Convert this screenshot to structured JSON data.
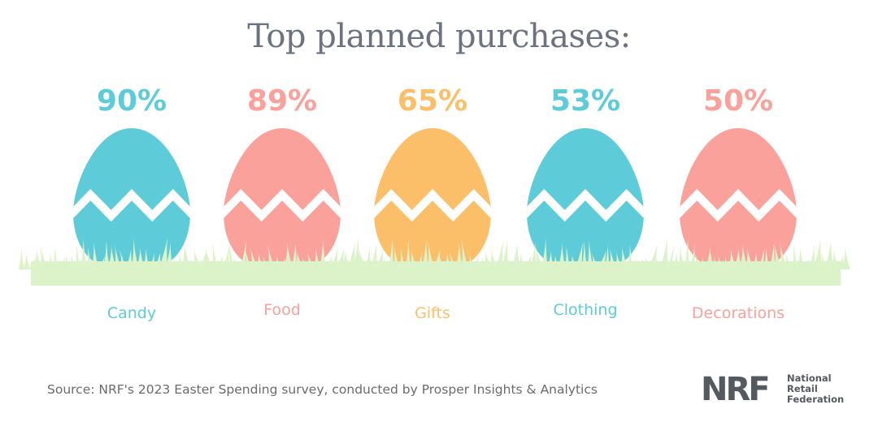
{
  "title": "Top planned purchases:",
  "chart_data": {
    "type": "bar",
    "categories": [
      "Candy",
      "Food",
      "Gifts",
      "Clothing",
      "Decorations"
    ],
    "values": [
      90,
      89,
      65,
      53,
      50
    ],
    "value_labels": [
      "90%",
      "89%",
      "65%",
      "53%",
      "50%"
    ],
    "unit": "%",
    "colors": [
      "#5ecbd8",
      "#f9a19a",
      "#fbbf6a",
      "#5ecbd8",
      "#f9a19a"
    ],
    "grass_color": "#dcf2c8",
    "title": "Top planned purchases:",
    "xlabel": "",
    "ylabel": ""
  },
  "source": "Source: NRF's 2023 Easter Spending survey, conducted by Prosper Insights & Analytics",
  "logo": {
    "mark": "NRF",
    "name_lines": [
      "National",
      "Retail",
      "Federation"
    ]
  }
}
